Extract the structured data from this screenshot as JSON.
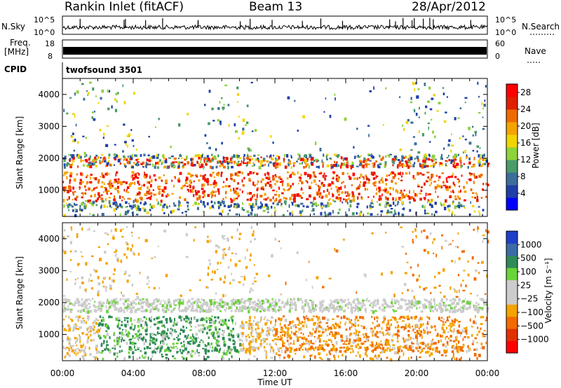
{
  "header": {
    "station": "Rankin Inlet (fitACF)",
    "beam": "Beam 13",
    "date": "28/Apr/2012"
  },
  "side_labels": {
    "nsky": "N.Sky",
    "nsearch": "N.Search",
    "freq_line1": "Freq.",
    "freq_line2": "[MHz]",
    "nave": "Nave",
    "cpid": "CPID",
    "cpid_value": "twofsound 3501"
  },
  "noise_panel": {
    "left_ticks": [
      "10^5",
      "10^0"
    ],
    "right_ticks": [
      "10^5",
      "10^0"
    ]
  },
  "freq_panel": {
    "left_ticks": [
      "18",
      "8"
    ],
    "right_ticks": [
      "60",
      "0"
    ]
  },
  "colors": {
    "power": [
      "#0000ff",
      "#1f3fa8",
      "#3c6e9c",
      "#4a9b6a",
      "#8fd33a",
      "#f2d400",
      "#f5a300",
      "#ee6a00",
      "#e02000",
      "#ff0000"
    ],
    "velocity": [
      "#ff0000",
      "#e23000",
      "#f26a00",
      "#f5a300",
      "#cccccc",
      "#cccccc",
      "#6bd33a",
      "#2e8b57",
      "#3b6ba8",
      "#1f3fc8"
    ]
  },
  "chart_data": [
    {
      "type": "heatmap",
      "title": "",
      "xlabel": "",
      "ylabel": "Slant Range [km]",
      "x_ticks": [
        "00:00",
        "04:00",
        "08:00",
        "12:00",
        "16:00",
        "20:00",
        "00:00"
      ],
      "xlim": [
        0,
        24
      ],
      "ylim": [
        180,
        4500
      ],
      "y_ticks": [
        1000,
        2000,
        3000,
        4000
      ],
      "colorbar": {
        "label": "Power [dB]",
        "ticks": [
          "4",
          "8",
          "12",
          "16",
          "20",
          "24",
          "28"
        ],
        "range": [
          0,
          30
        ]
      }
    },
    {
      "type": "heatmap",
      "title": "",
      "xlabel": "Time UT",
      "ylabel": "Slant Range [km]",
      "x_ticks": [
        "00:00",
        "04:00",
        "08:00",
        "12:00",
        "16:00",
        "20:00",
        "00:00"
      ],
      "xlim": [
        0,
        24
      ],
      "ylim": [
        180,
        4500
      ],
      "y_ticks": [
        1000,
        2000,
        3000,
        4000
      ],
      "colorbar": {
        "label": "Velocity [m s⁻¹]",
        "ticks": [
          "1000",
          "500",
          "100",
          "25",
          "−25",
          "−100",
          "−500",
          "−1000"
        ]
      }
    }
  ]
}
